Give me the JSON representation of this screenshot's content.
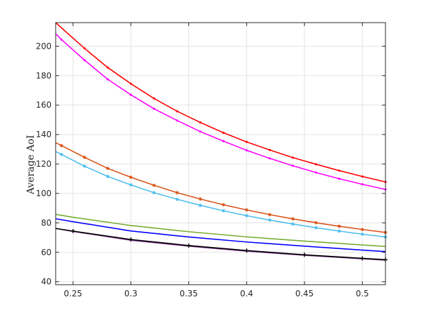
{
  "chart_data": {
    "type": "line",
    "title": "",
    "xlabel": "",
    "ylabel": "Average AoI",
    "xlim": [
      0.235,
      0.52
    ],
    "ylim": [
      38,
      216
    ],
    "grid": true,
    "x_ticks": [
      0.25,
      0.3,
      0.35,
      0.4,
      0.45,
      0.5
    ],
    "x_tick_labels": [
      "0.25",
      "0.3",
      "0.35",
      "0.4",
      "0.45",
      "0.5"
    ],
    "y_ticks": [
      40,
      60,
      80,
      100,
      120,
      140,
      160,
      180,
      200
    ],
    "y_tick_labels": [
      "40",
      "60",
      "80",
      "100",
      "120",
      "140",
      "160",
      "180",
      "200"
    ],
    "series": [
      {
        "color": "#ff0000",
        "marker": "dot",
        "x": [
          0.235,
          0.26,
          0.28,
          0.3,
          0.32,
          0.34,
          0.36,
          0.38,
          0.4,
          0.42,
          0.44,
          0.46,
          0.48,
          0.5,
          0.52
        ],
        "y": [
          216,
          198.5,
          185.5,
          174.5,
          164.5,
          155.8,
          148.2,
          141.2,
          135,
          129.5,
          124.3,
          119.8,
          115.5,
          111.5,
          107.8
        ]
      },
      {
        "color": "#ff00ff",
        "marker": "dot",
        "x": [
          0.235,
          0.24,
          0.26,
          0.28,
          0.3,
          0.32,
          0.34,
          0.36,
          0.38,
          0.4,
          0.42,
          0.44,
          0.46,
          0.48,
          0.5,
          0.52
        ],
        "y": [
          208.5,
          204.5,
          190.5,
          177.5,
          167,
          157.5,
          149.5,
          142,
          135.5,
          129.3,
          123.8,
          118.8,
          114.2,
          110,
          106.2,
          102.7
        ]
      },
      {
        "color": "#d95319",
        "marker": "star",
        "x": [
          0.235,
          0.24,
          0.26,
          0.28,
          0.3,
          0.32,
          0.34,
          0.36,
          0.38,
          0.4,
          0.42,
          0.44,
          0.46,
          0.48,
          0.5,
          0.52
        ],
        "y": [
          134.5,
          132.5,
          124.5,
          117,
          111,
          105.5,
          100.5,
          96.2,
          92.3,
          88.8,
          85.6,
          82.7,
          80.1,
          77.7,
          75.5,
          73.5
        ]
      },
      {
        "color": "#4dbeee",
        "marker": "star",
        "x": [
          0.235,
          0.24,
          0.26,
          0.28,
          0.3,
          0.32,
          0.34,
          0.36,
          0.38,
          0.4,
          0.42,
          0.44,
          0.46,
          0.48,
          0.5,
          0.52
        ],
        "y": [
          128.5,
          126.5,
          118.5,
          111.5,
          105.8,
          100.5,
          96,
          91.9,
          88.2,
          84.9,
          81.9,
          79.2,
          76.7,
          74.4,
          72.3,
          70.4
        ]
      },
      {
        "color": "#77ac30",
        "marker": "none",
        "x": [
          0.235,
          0.25,
          0.3,
          0.35,
          0.4,
          0.45,
          0.5,
          0.52
        ],
        "y": [
          85.8,
          83.8,
          78.2,
          74,
          70.5,
          67.6,
          65,
          64
        ]
      },
      {
        "color": "#0000ff",
        "marker": "none",
        "x": [
          0.235,
          0.25,
          0.3,
          0.35,
          0.4,
          0.45,
          0.5,
          0.52
        ],
        "y": [
          82.8,
          80.8,
          74.5,
          70.4,
          67,
          64.2,
          61.5,
          60.5
        ]
      },
      {
        "color": "#7e2f8e",
        "marker": "none",
        "x": [
          0.235,
          0.25,
          0.3,
          0.35,
          0.4,
          0.45,
          0.5,
          0.52
        ],
        "y": [
          76.2,
          74.2,
          68.2,
          64.2,
          60.8,
          58,
          55.6,
          54.7
        ]
      },
      {
        "color": "#000000",
        "marker": "plus",
        "x": [
          0.235,
          0.25,
          0.3,
          0.35,
          0.4,
          0.45,
          0.5,
          0.52
        ],
        "y": [
          76.2,
          74.4,
          68.7,
          64.6,
          61.2,
          58.3,
          55.9,
          55
        ]
      }
    ]
  }
}
